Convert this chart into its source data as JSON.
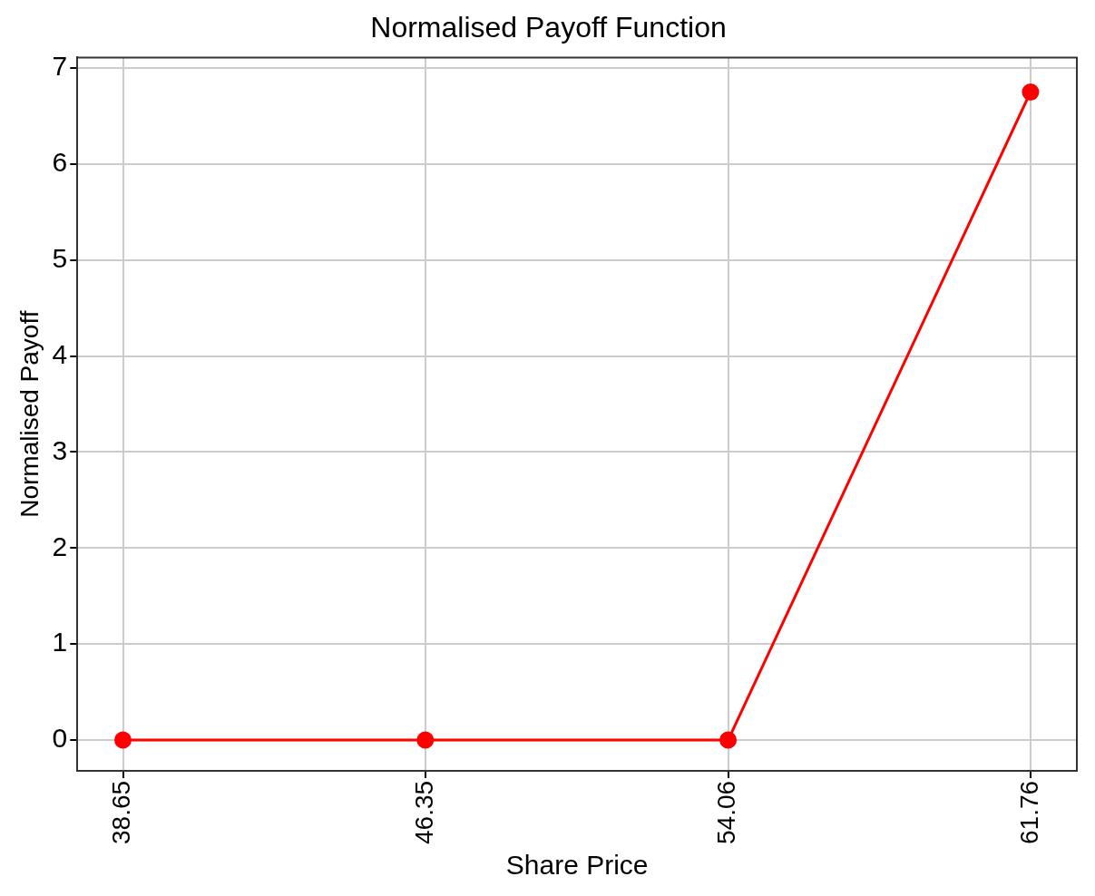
{
  "chart_data": {
    "type": "line",
    "title": "Normalised Payoff Function",
    "xlabel": "Share Price",
    "ylabel": "Normalised Payoff",
    "x": [
      38.65,
      46.35,
      54.06,
      61.76
    ],
    "series": [
      {
        "color": "#ff0000",
        "values": [
          0,
          0,
          0,
          6.75
        ]
      }
    ],
    "xlim": [
      37.49,
      62.94
    ],
    "xticks": [
      38.65,
      46.35,
      54.06,
      61.76
    ],
    "ylim": [
      -0.32,
      7.11
    ],
    "yticks": [
      0,
      1,
      2,
      3,
      4,
      5,
      6,
      7
    ],
    "grid": true,
    "marker": "circle",
    "line_style": "solid",
    "legend": false
  }
}
